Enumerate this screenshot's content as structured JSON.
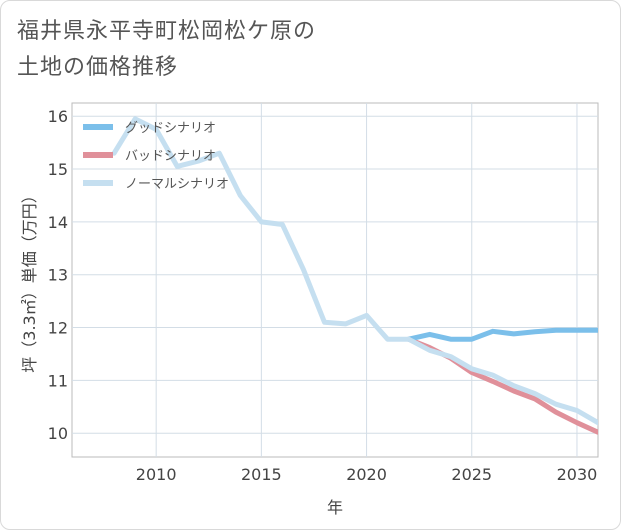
{
  "title": {
    "line1": "福井県永平寺町松岡松ケ原の",
    "line2": "土地の価格推移"
  },
  "chart_data": {
    "type": "line",
    "xlabel": "年",
    "ylabel": "坪（3.3㎡）単価（万円）",
    "xlim": [
      2006,
      2031
    ],
    "ylim": [
      9.55,
      16.25
    ],
    "xticks": [
      2010,
      2015,
      2020,
      2025,
      2030
    ],
    "yticks": [
      10,
      11,
      12,
      13,
      14,
      15,
      16
    ],
    "grid": true,
    "legend_position": "top-left",
    "series": [
      {
        "name": "グッドシナリオ",
        "color": "#7bbfea",
        "x": [
          2022,
          2023,
          2024,
          2025,
          2026,
          2027,
          2028,
          2029,
          2030,
          2031
        ],
        "y": [
          11.78,
          11.87,
          11.78,
          11.78,
          11.93,
          11.88,
          11.92,
          11.95,
          11.95,
          11.95
        ]
      },
      {
        "name": "バッドシナリオ",
        "color": "#e0909a",
        "x": [
          2022,
          2023,
          2024,
          2025,
          2026,
          2027,
          2028,
          2029,
          2030,
          2031
        ],
        "y": [
          11.78,
          11.62,
          11.42,
          11.15,
          10.98,
          10.8,
          10.65,
          10.4,
          10.2,
          10.02
        ]
      },
      {
        "name": "ノーマルシナリオ",
        "color": "#c5dff0",
        "x": [
          2008,
          2009,
          2010,
          2011,
          2012,
          2013,
          2014,
          2015,
          2016,
          2017,
          2018,
          2019,
          2020,
          2021,
          2022,
          2023,
          2024,
          2025,
          2026,
          2027,
          2028,
          2029,
          2030,
          2031
        ],
        "y": [
          15.3,
          15.95,
          15.75,
          15.05,
          15.15,
          15.3,
          14.5,
          14.0,
          13.95,
          13.1,
          12.1,
          12.07,
          12.23,
          11.78,
          11.78,
          11.57,
          11.45,
          11.22,
          11.1,
          10.9,
          10.75,
          10.55,
          10.43,
          10.2
        ]
      }
    ]
  }
}
